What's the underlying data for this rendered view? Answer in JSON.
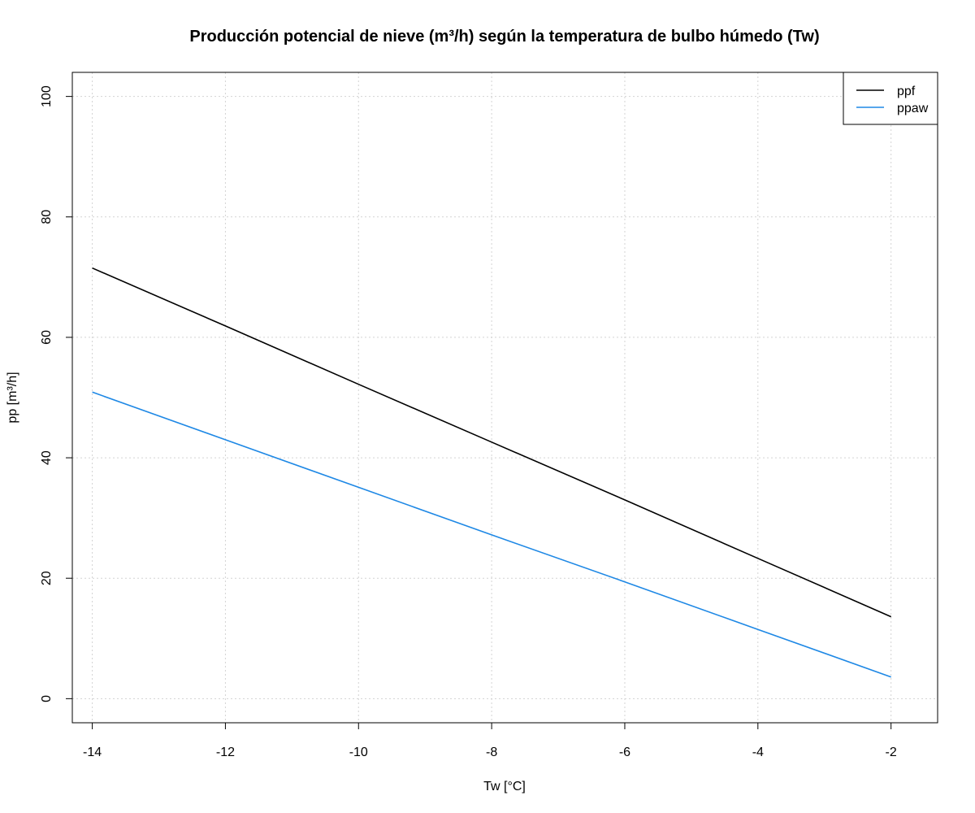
{
  "chart_data": {
    "type": "line",
    "title": "Producción potencial de nieve (m³/h) según la temperatura de bulbo húmedo (Tw)",
    "xlabel": "Tw [°C]",
    "ylabel": "pp [m³/h]",
    "xlim": [
      -14.3,
      -1.3
    ],
    "ylim": [
      -4,
      104
    ],
    "x_ticks": [
      -14,
      -12,
      -10,
      -8,
      -6,
      -4,
      -2
    ],
    "y_ticks": [
      0,
      20,
      40,
      60,
      80,
      100
    ],
    "x_tick_labels": [
      "-14",
      "-12",
      "-10",
      "-8",
      "-6",
      "-4",
      "-2"
    ],
    "y_tick_labels": [
      "0",
      "20",
      "40",
      "60",
      "80",
      "100"
    ],
    "grid": true,
    "legend_position": "top-right",
    "series": [
      {
        "name": "ppf",
        "color": "#000000",
        "x": [
          -14,
          -12,
          -10,
          -8,
          -6,
          -4,
          -2
        ],
        "values": [
          71.5,
          61.9,
          52.2,
          42.6,
          33.0,
          23.3,
          13.6
        ]
      },
      {
        "name": "ppaw",
        "color": "#1e88e5",
        "x": [
          -14,
          -12,
          -10,
          -8,
          -6,
          -4,
          -2
        ],
        "values": [
          50.9,
          43.0,
          35.1,
          27.2,
          19.4,
          11.5,
          3.6
        ]
      }
    ]
  }
}
